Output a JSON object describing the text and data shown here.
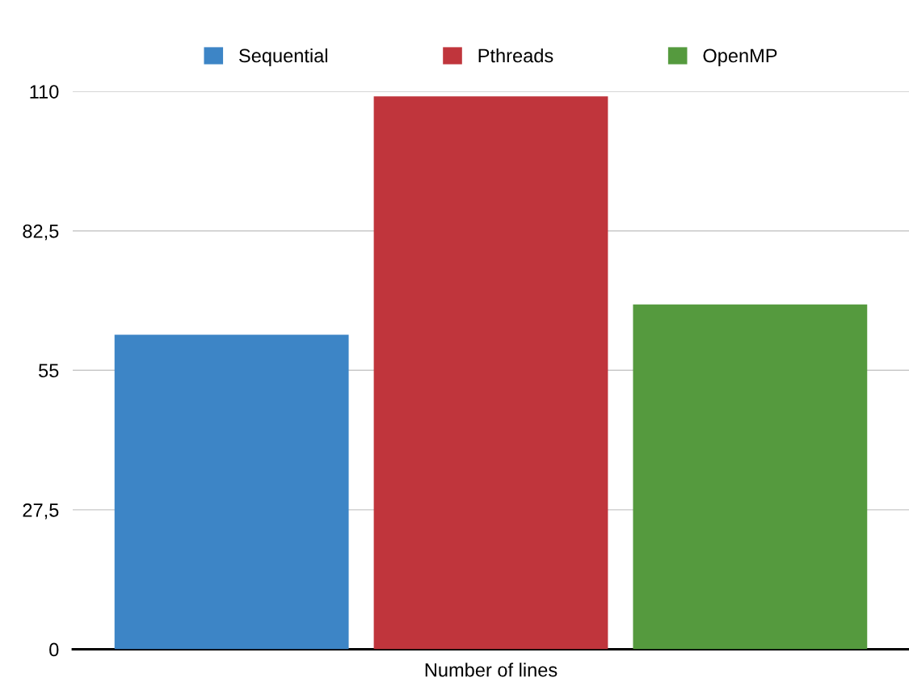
{
  "chart_data": {
    "type": "bar",
    "categories": [
      "Number of lines"
    ],
    "series": [
      {
        "name": "Sequential",
        "color": "#3d85c6",
        "values": [
          62
        ]
      },
      {
        "name": "Pthreads",
        "color": "#c0353c",
        "values": [
          109
        ]
      },
      {
        "name": "OpenMP",
        "color": "#559a3e",
        "values": [
          68
        ]
      }
    ],
    "ylim": [
      0,
      110
    ],
    "yticks": [
      0,
      {
        "value": 27.5,
        "label": "27,5"
      },
      55,
      {
        "value": 82.5,
        "label": "82,5"
      },
      110
    ],
    "grid": "y",
    "legend": "top"
  }
}
